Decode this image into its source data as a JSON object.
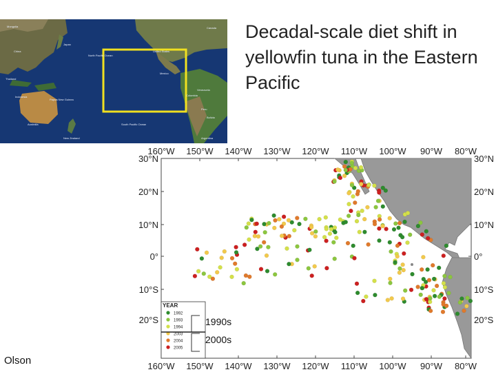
{
  "title": "Decadal-scale diet shift in yellowfin tuna in the Eastern Pacific",
  "author": "Olson",
  "globe_labels": [
    "Mongolia",
    "China",
    "Japan",
    "Thailand",
    "Indonesia",
    "Papua New Guinea",
    "Australia",
    "New Zealand",
    "North Pacific Ocean",
    "South Pacific Ocean",
    "United States",
    "Mexico",
    "Venezuela",
    "Colombia",
    "Peru",
    "Bolivia",
    "Argentina",
    "Canada"
  ],
  "map": {
    "lon_labels": [
      "160°W",
      "150°W",
      "140°W",
      "130°W",
      "120°W",
      "110°W",
      "100°W",
      "90°W",
      "80°W"
    ],
    "lat_labels": [
      "30°N",
      "20°N",
      "10°N",
      "0°",
      "10°S",
      "20°S"
    ],
    "legend_title": "YEAR",
    "legend_years": [
      "1992",
      "1993",
      "1994",
      "2003",
      "2004",
      "2005"
    ],
    "legend_colors": [
      "#2e8b2e",
      "#8cc63f",
      "#d4e04a",
      "#f2c94c",
      "#e07a2c",
      "#cc2020"
    ],
    "bracket_1990s": "1990s",
    "bracket_2000s": "2000s"
  }
}
